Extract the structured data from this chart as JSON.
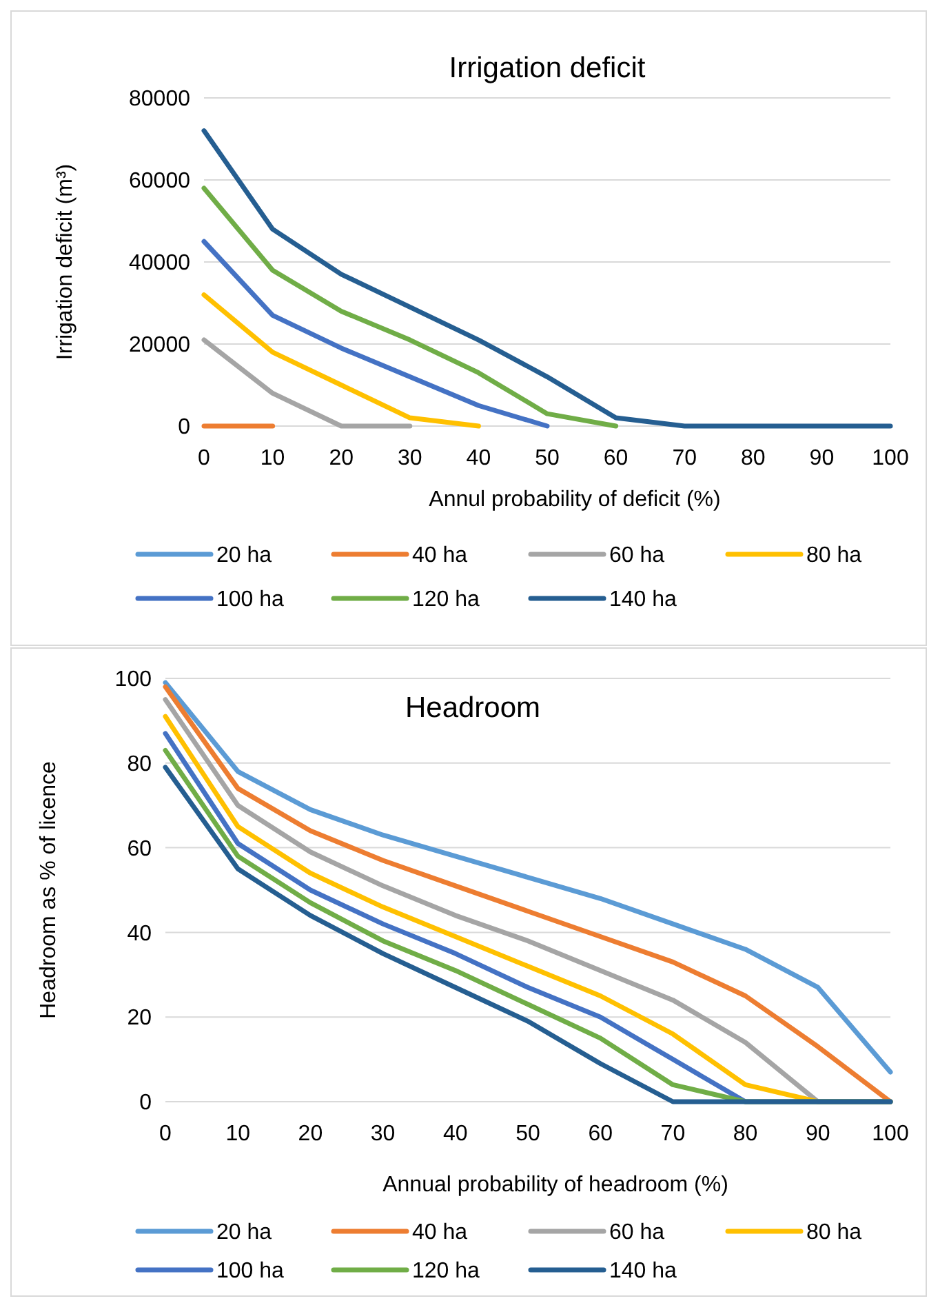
{
  "chart_data": [
    {
      "type": "line",
      "title": "Irrigation deficit",
      "xlabel": "Annul probability of deficit (%)",
      "ylabel": "Irrigation deficit (m³)",
      "x": [
        0,
        10,
        20,
        30,
        40,
        50,
        60,
        70,
        80,
        90,
        100
      ],
      "xlim": [
        0,
        100
      ],
      "xticks": [
        0,
        10,
        20,
        30,
        40,
        50,
        60,
        70,
        80,
        90,
        100
      ],
      "ylim": [
        0,
        80000
      ],
      "yticks": [
        0,
        20000,
        40000,
        60000,
        80000
      ],
      "grid": "y",
      "legend": "bottom",
      "marker": "none",
      "line_style": "solid",
      "series": [
        {
          "name": "20 ha",
          "color": "#5b9bd5",
          "values": [
            null,
            null,
            null,
            null,
            null,
            null,
            null,
            null,
            null,
            null,
            null
          ]
        },
        {
          "name": "40 ha",
          "color": "#ed7d31",
          "values": [
            0,
            0,
            null,
            null,
            null,
            null,
            null,
            null,
            null,
            null,
            null
          ]
        },
        {
          "name": "60 ha",
          "color": "#a5a5a5",
          "values": [
            21000,
            8000,
            0,
            0,
            null,
            null,
            null,
            null,
            null,
            null,
            null
          ]
        },
        {
          "name": "80 ha",
          "color": "#ffc000",
          "values": [
            32000,
            18000,
            10000,
            2000,
            0,
            null,
            null,
            null,
            null,
            null,
            null
          ]
        },
        {
          "name": "100 ha",
          "color": "#4472c4",
          "values": [
            45000,
            27000,
            19000,
            12000,
            5000,
            0,
            null,
            null,
            null,
            null,
            null
          ]
        },
        {
          "name": "120 ha",
          "color": "#70ad47",
          "values": [
            58000,
            38000,
            28000,
            21000,
            13000,
            3000,
            0,
            null,
            null,
            null,
            null
          ]
        },
        {
          "name": "140 ha",
          "color": "#255e91",
          "values": [
            72000,
            48000,
            37000,
            29000,
            21000,
            12000,
            2000,
            0,
            0,
            0,
            0
          ]
        }
      ]
    },
    {
      "type": "line",
      "title": "Headroom",
      "xlabel": "Annual probability of headroom (%)",
      "ylabel": "Headroom as  % of licence",
      "x": [
        0,
        10,
        20,
        30,
        40,
        50,
        60,
        70,
        80,
        90,
        100
      ],
      "xlim": [
        0,
        100
      ],
      "xticks": [
        0,
        10,
        20,
        30,
        40,
        50,
        60,
        70,
        80,
        90,
        100
      ],
      "ylim": [
        0,
        100
      ],
      "yticks": [
        0,
        20,
        40,
        60,
        80,
        100
      ],
      "grid": "y",
      "legend": "bottom",
      "marker": "none",
      "line_style": "solid",
      "series": [
        {
          "name": "20 ha",
          "color": "#5b9bd5",
          "values": [
            99,
            78,
            69,
            63,
            58,
            53,
            48,
            42,
            36,
            27,
            7
          ]
        },
        {
          "name": "40 ha",
          "color": "#ed7d31",
          "values": [
            98,
            74,
            64,
            57,
            51,
            45,
            39,
            33,
            25,
            13,
            0
          ]
        },
        {
          "name": "60 ha",
          "color": "#a5a5a5",
          "values": [
            95,
            70,
            59,
            51,
            44,
            38,
            31,
            24,
            14,
            0,
            0
          ]
        },
        {
          "name": "80 ha",
          "color": "#ffc000",
          "values": [
            91,
            65,
            54,
            46,
            39,
            32,
            25,
            16,
            4,
            0,
            0
          ]
        },
        {
          "name": "100 ha",
          "color": "#4472c4",
          "values": [
            87,
            61,
            50,
            42,
            35,
            27,
            20,
            10,
            0,
            0,
            0
          ]
        },
        {
          "name": "120 ha",
          "color": "#70ad47",
          "values": [
            83,
            58,
            47,
            38,
            31,
            23,
            15,
            4,
            0,
            0,
            0
          ]
        },
        {
          "name": "140 ha",
          "color": "#255e91",
          "values": [
            79,
            55,
            44,
            35,
            27,
            19,
            9,
            0,
            0,
            0,
            0
          ]
        }
      ]
    }
  ]
}
